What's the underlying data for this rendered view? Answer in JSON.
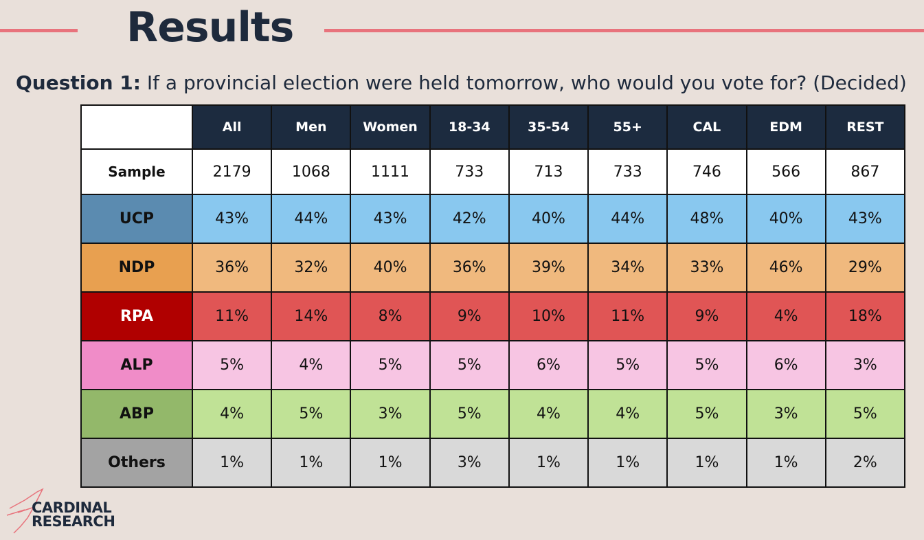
{
  "header": {
    "title": "Results"
  },
  "question": {
    "label": "Question 1:",
    "text": "If a provincial election were held tomorrow, who would you vote for? (Decided)"
  },
  "table": {
    "columns": [
      "All",
      "Men",
      "Women",
      "18-34",
      "35-54",
      "55+",
      "CAL",
      "EDM",
      "REST"
    ],
    "rows": [
      {
        "label": "Sample",
        "cells": [
          "2179",
          "1068",
          "1111",
          "733",
          "713",
          "733",
          "746",
          "566",
          "867"
        ]
      },
      {
        "label": "UCP",
        "cells": [
          "43%",
          "44%",
          "43%",
          "42%",
          "40%",
          "44%",
          "48%",
          "40%",
          "43%"
        ]
      },
      {
        "label": "NDP",
        "cells": [
          "36%",
          "32%",
          "40%",
          "36%",
          "39%",
          "34%",
          "33%",
          "46%",
          "29%"
        ]
      },
      {
        "label": "RPA",
        "cells": [
          "11%",
          "14%",
          "8%",
          "9%",
          "10%",
          "11%",
          "9%",
          "4%",
          "18%"
        ]
      },
      {
        "label": "ALP",
        "cells": [
          "5%",
          "4%",
          "5%",
          "5%",
          "6%",
          "5%",
          "5%",
          "6%",
          "3%"
        ]
      },
      {
        "label": "ABP",
        "cells": [
          "4%",
          "5%",
          "3%",
          "5%",
          "4%",
          "4%",
          "5%",
          "3%",
          "5%"
        ]
      },
      {
        "label": "Others",
        "cells": [
          "1%",
          "1%",
          "1%",
          "3%",
          "1%",
          "1%",
          "1%",
          "1%",
          "2%"
        ]
      }
    ]
  },
  "logo": {
    "line1": "CARDINAL",
    "line2": "RESEARCH"
  }
}
